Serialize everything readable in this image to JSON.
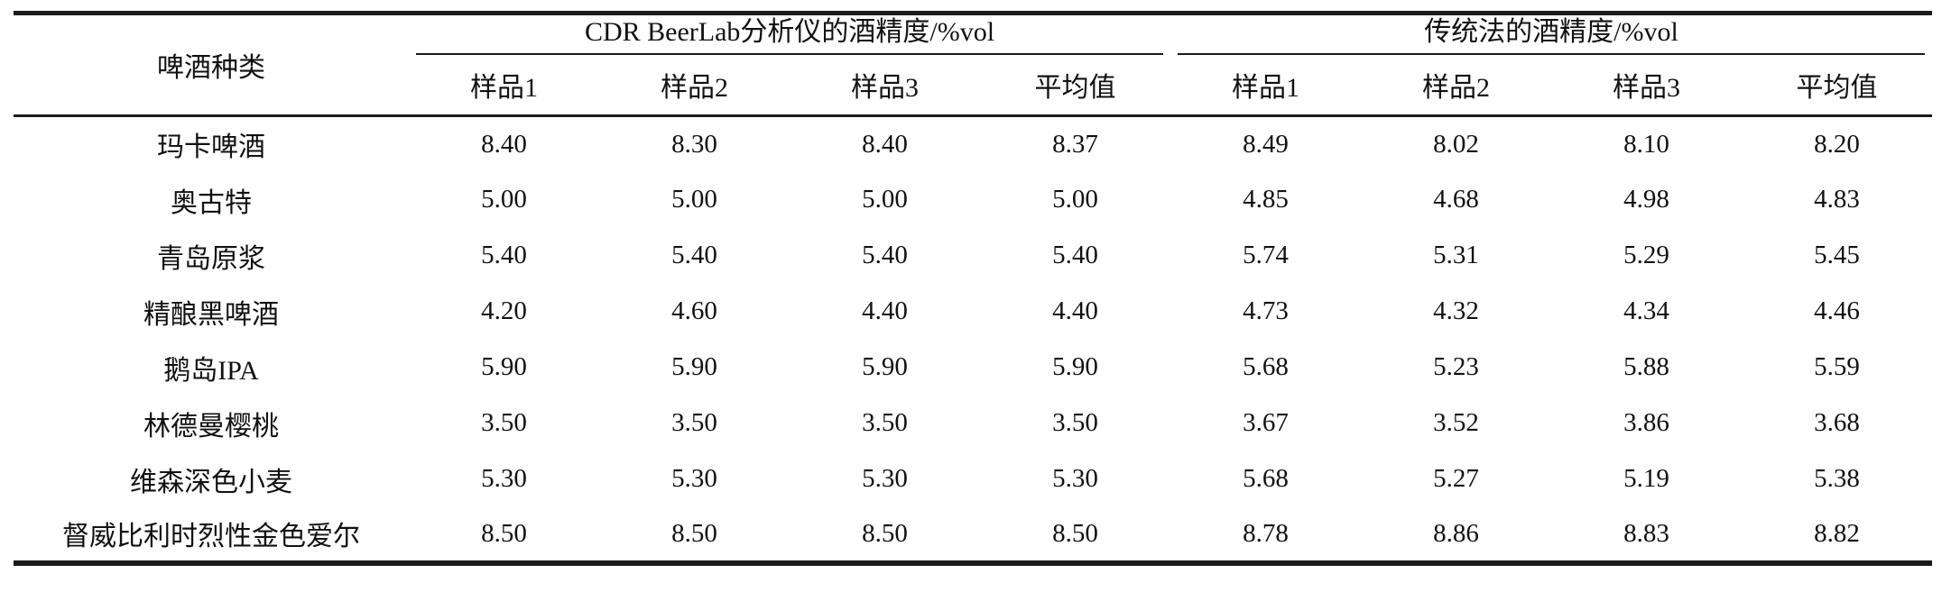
{
  "table": {
    "row_header": "啤酒种类",
    "groups": [
      {
        "label": "CDR BeerLab分析仪的酒精度/%vol",
        "subcolumns": [
          "样品1",
          "样品2",
          "样品3",
          "平均值"
        ]
      },
      {
        "label": "传统法的酒精度/%vol",
        "subcolumns": [
          "样品1",
          "样品2",
          "样品3",
          "平均值"
        ]
      }
    ],
    "rows": [
      {
        "name": "玛卡啤酒",
        "cdr": [
          "8.40",
          "8.30",
          "8.40",
          "8.37"
        ],
        "traditional": [
          "8.49",
          "8.02",
          "8.10",
          "8.20"
        ]
      },
      {
        "name": "奥古特",
        "cdr": [
          "5.00",
          "5.00",
          "5.00",
          "5.00"
        ],
        "traditional": [
          "4.85",
          "4.68",
          "4.98",
          "4.83"
        ]
      },
      {
        "name": "青岛原浆",
        "cdr": [
          "5.40",
          "5.40",
          "5.40",
          "5.40"
        ],
        "traditional": [
          "5.74",
          "5.31",
          "5.29",
          "5.45"
        ]
      },
      {
        "name": "精酿黑啤酒",
        "cdr": [
          "4.20",
          "4.60",
          "4.40",
          "4.40"
        ],
        "traditional": [
          "4.73",
          "4.32",
          "4.34",
          "4.46"
        ]
      },
      {
        "name": "鹅岛IPA",
        "cdr": [
          "5.90",
          "5.90",
          "5.90",
          "5.90"
        ],
        "traditional": [
          "5.68",
          "5.23",
          "5.88",
          "5.59"
        ]
      },
      {
        "name": "林德曼樱桃",
        "cdr": [
          "3.50",
          "3.50",
          "3.50",
          "3.50"
        ],
        "traditional": [
          "3.67",
          "3.52",
          "3.86",
          "3.68"
        ]
      },
      {
        "name": "维森深色小麦",
        "cdr": [
          "5.30",
          "5.30",
          "5.30",
          "5.30"
        ],
        "traditional": [
          "5.68",
          "5.27",
          "5.19",
          "5.38"
        ]
      },
      {
        "name": "督威比利时烈性金色爱尔",
        "cdr": [
          "8.50",
          "8.50",
          "8.50",
          "8.50"
        ],
        "traditional": [
          "8.78",
          "8.86",
          "8.83",
          "8.82"
        ]
      }
    ]
  },
  "colors": {
    "rule": "#1b1b1b",
    "text": "#111111",
    "background": "#ffffff"
  },
  "chart_data": {
    "type": "table",
    "title": "",
    "column_groups": [
      "CDR BeerLab分析仪的酒精度/%vol",
      "传统法的酒精度/%vol"
    ],
    "columns": [
      "啤酒种类",
      "样品1",
      "样品2",
      "样品3",
      "平均值",
      "样品1",
      "样品2",
      "样品3",
      "平均值"
    ],
    "rows": [
      [
        "玛卡啤酒",
        8.4,
        8.3,
        8.4,
        8.37,
        8.49,
        8.02,
        8.1,
        8.2
      ],
      [
        "奥古特",
        5.0,
        5.0,
        5.0,
        5.0,
        4.85,
        4.68,
        4.98,
        4.83
      ],
      [
        "青岛原浆",
        5.4,
        5.4,
        5.4,
        5.4,
        5.74,
        5.31,
        5.29,
        5.45
      ],
      [
        "精酿黑啤酒",
        4.2,
        4.6,
        4.4,
        4.4,
        4.73,
        4.32,
        4.34,
        4.46
      ],
      [
        "鹅岛IPA",
        5.9,
        5.9,
        5.9,
        5.9,
        5.68,
        5.23,
        5.88,
        5.59
      ],
      [
        "林德曼樱桃",
        3.5,
        3.5,
        3.5,
        3.5,
        3.67,
        3.52,
        3.86,
        3.68
      ],
      [
        "维森深色小麦",
        5.3,
        5.3,
        5.3,
        5.3,
        5.68,
        5.27,
        5.19,
        5.38
      ],
      [
        "督威比利时烈性金色爱尔",
        8.5,
        8.5,
        8.5,
        8.5,
        8.78,
        8.86,
        8.83,
        8.82
      ]
    ]
  }
}
